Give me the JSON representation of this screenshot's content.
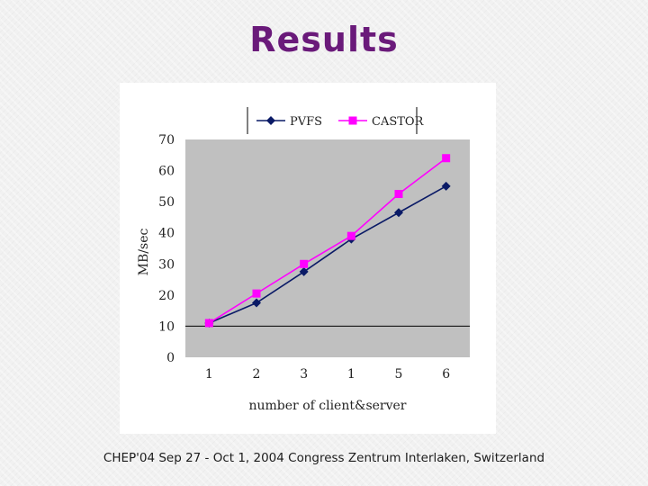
{
  "slide": {
    "title": "Results",
    "footer": "CHEP'04 Sep 27 - Oct 1, 2004 Congress Zentrum Interlaken, Switzerland"
  },
  "chart_data": {
    "type": "line",
    "categories": [
      "1",
      "2",
      "3",
      "1",
      "5",
      "6"
    ],
    "series": [
      {
        "name": "PVFS",
        "color": "#0a1a66",
        "marker": "diamond",
        "values": [
          11,
          17.5,
          27.5,
          38,
          46.5,
          55
        ]
      },
      {
        "name": "CASTOR",
        "color": "#ff00ff",
        "marker": "square",
        "values": [
          11,
          20.5,
          30,
          39,
          52.5,
          64
        ]
      }
    ],
    "xlabel": "number of client&server",
    "ylabel": "MB/sec",
    "ylim": [
      0,
      70
    ],
    "yticks": [
      0,
      10,
      20,
      30,
      40,
      50,
      60,
      70
    ],
    "legend_position": "top",
    "plot_background": "#c0c0c0",
    "gridlines": [
      10
    ]
  }
}
